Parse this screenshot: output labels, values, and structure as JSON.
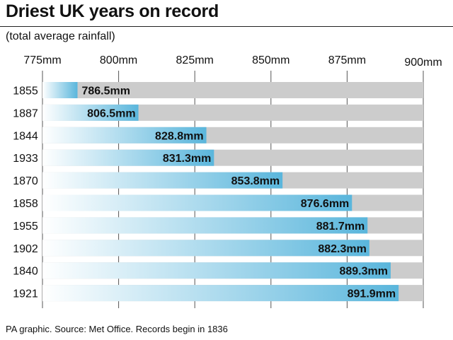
{
  "title": "Driest UK years on record",
  "subtitle": "(total average rainfall)",
  "source": "PA graphic. Source: Met Office. Records begin in 1836",
  "colors": {
    "bar": "#5ab6dc",
    "track": "#cccccc",
    "grid": "#555555",
    "text": "#111111"
  },
  "chart_data": {
    "type": "bar",
    "orientation": "horizontal",
    "title": "Driest UK years on record",
    "subtitle": "(total average rainfall)",
    "xlim": [
      775,
      900
    ],
    "ticks": [
      775,
      800,
      825,
      850,
      875,
      900
    ],
    "tick_labels": [
      "775mm",
      "800mm",
      "825mm",
      "850mm",
      "875mm",
      "900mm"
    ],
    "grid": true,
    "categories": [
      "1855",
      "1887",
      "1844",
      "1933",
      "1870",
      "1858",
      "1955",
      "1902",
      "1840",
      "1921"
    ],
    "values": [
      786.5,
      806.5,
      828.8,
      831.3,
      853.8,
      876.6,
      881.7,
      882.3,
      889.3,
      891.9
    ],
    "value_labels": [
      "786.5mm",
      "806.5mm",
      "828.8mm",
      "831.3mm",
      "853.8mm",
      "876.6mm",
      "881.7mm",
      "882.3mm",
      "889.3mm",
      "891.9mm"
    ]
  }
}
